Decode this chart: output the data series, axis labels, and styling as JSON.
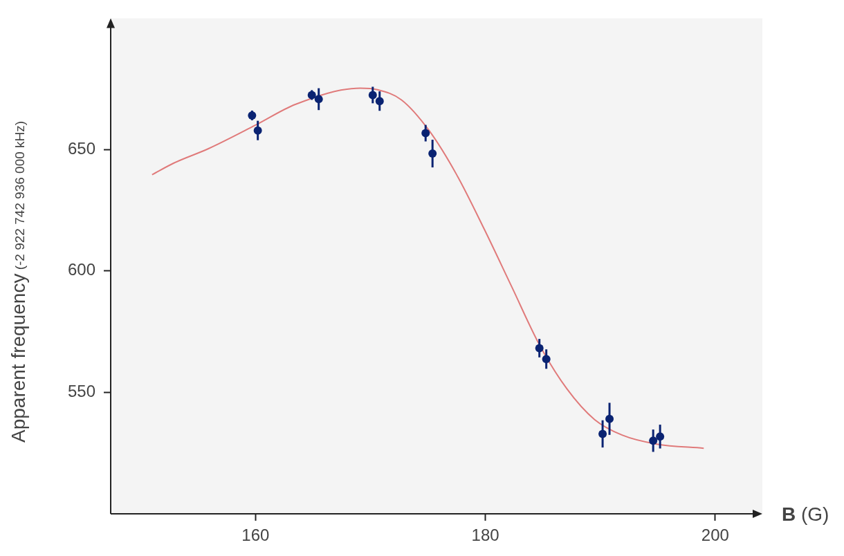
{
  "chart_data": {
    "type": "scatter",
    "xlabel": "B (G)",
    "ylabel": "Apparent frequency (-2 922 742 936 000 kHz)",
    "xlim": [
      147.4,
      204.1
    ],
    "ylim": [
      500,
      704
    ],
    "xticks": [
      160,
      180,
      200
    ],
    "yticks": [
      550,
      600,
      650
    ],
    "grid": false,
    "legend": false,
    "marker": "circle",
    "series": [
      {
        "type": "line",
        "color": "#e07a7a",
        "marker": "none",
        "x": [
          151,
          152.9,
          155.9,
          160,
          163.5,
          169.1,
          170.6,
          172.7,
          175.1,
          177.5,
          179.9,
          182.3,
          184.7,
          187.1,
          189.5,
          191.9,
          194.9,
          199
        ],
        "values": [
          639.6,
          644.4,
          650.3,
          660,
          668.6,
          675.2,
          674.6,
          670.4,
          657.8,
          639.6,
          617.2,
          593.4,
          569.6,
          551.4,
          538.8,
          532.4,
          528.7,
          527
        ]
      },
      {
        "color": "#0a2372",
        "x": [
          159.7,
          160.2,
          164.9,
          165.5,
          170.2,
          170.8,
          174.8,
          175.4,
          184.7,
          185.3,
          190.2,
          190.8,
          194.6,
          195.2
        ],
        "values": [
          664,
          657.8,
          672.4,
          670.7,
          672.4,
          669.9,
          656.7,
          648.3,
          568.2,
          563.7,
          532.9,
          539.1,
          530.1,
          531.8
        ],
        "errors": [
          2,
          4,
          2,
          4.5,
          3.4,
          4,
          3.4,
          5.7,
          3.8,
          4,
          5.6,
          6.6,
          4.6,
          4.9
        ]
      }
    ]
  }
}
